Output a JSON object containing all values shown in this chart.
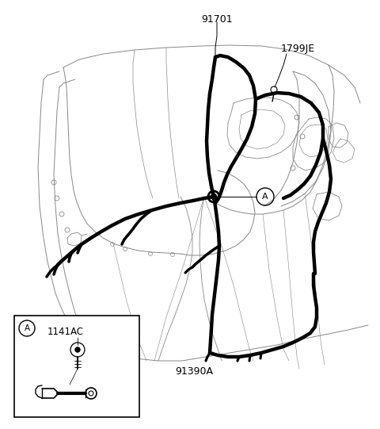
{
  "background_color": "#ffffff",
  "line_color": "#1a1a1a",
  "wire_color": "#000000",
  "label_91701": "91701",
  "label_1799JE": "1799JE",
  "label_91390A": "91390A",
  "label_A": "A",
  "label_1141AC": "1141AC",
  "label_A_inset": "A",
  "fig_width": 4.8,
  "fig_height": 5.41,
  "dpi": 100
}
